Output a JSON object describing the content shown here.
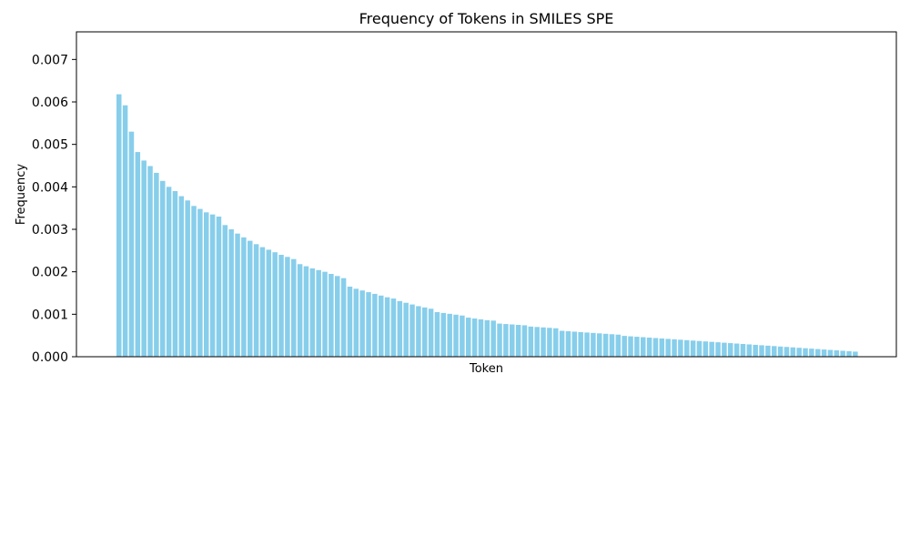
{
  "chart_data": {
    "type": "bar",
    "title": "Frequency of Tokens in SMILES SPE",
    "xlabel": "Token",
    "ylabel": "Frequency",
    "ylim": [
      0,
      0.00765
    ],
    "yticks": [
      0.0,
      0.001,
      0.002,
      0.003,
      0.004,
      0.005,
      0.006,
      0.007
    ],
    "ytick_labels": [
      "0.000",
      "0.001",
      "0.002",
      "0.003",
      "0.004",
      "0.005",
      "0.006",
      "0.007"
    ],
    "bar_color": "#87CEEB",
    "x_tick_labels_visible": false,
    "grid": false,
    "values": [
      0.00618,
      0.00592,
      0.0053,
      0.00482,
      0.00462,
      0.00449,
      0.00433,
      0.00414,
      0.004,
      0.0039,
      0.00378,
      0.00368,
      0.00355,
      0.00348,
      0.0034,
      0.00335,
      0.0033,
      0.0031,
      0.003,
      0.0029,
      0.00281,
      0.00273,
      0.00265,
      0.00258,
      0.00252,
      0.00246,
      0.0024,
      0.00235,
      0.0023,
      0.00218,
      0.00213,
      0.00208,
      0.00204,
      0.002,
      0.00195,
      0.0019,
      0.00185,
      0.00165,
      0.0016,
      0.00156,
      0.00152,
      0.00148,
      0.00144,
      0.0014,
      0.00137,
      0.00131,
      0.00127,
      0.00123,
      0.00119,
      0.00116,
      0.00113,
      0.00105,
      0.00103,
      0.00101,
      0.00099,
      0.00097,
      0.00092,
      0.0009,
      0.00088,
      0.00086,
      0.00085,
      0.00078,
      0.00077,
      0.00076,
      0.00075,
      0.00074,
      0.00071,
      0.0007,
      0.00069,
      0.00068,
      0.00067,
      0.00061,
      0.0006,
      0.00059,
      0.00058,
      0.00057,
      0.00056,
      0.00055,
      0.00054,
      0.00053,
      0.00052,
      0.00049,
      0.00048,
      0.00047,
      0.00046,
      0.00045,
      0.00044,
      0.00043,
      0.00042,
      0.00041,
      0.0004,
      0.00039,
      0.00038,
      0.00037,
      0.00036,
      0.00035,
      0.00034,
      0.00033,
      0.00032,
      0.00031,
      0.0003,
      0.00029,
      0.00028,
      0.00027,
      0.00026,
      0.00025,
      0.00024,
      0.00023,
      0.00022,
      0.00021,
      0.0002,
      0.00019,
      0.00018,
      0.00017,
      0.00016,
      0.00015,
      0.00014,
      0.00013,
      0.00012
    ]
  }
}
